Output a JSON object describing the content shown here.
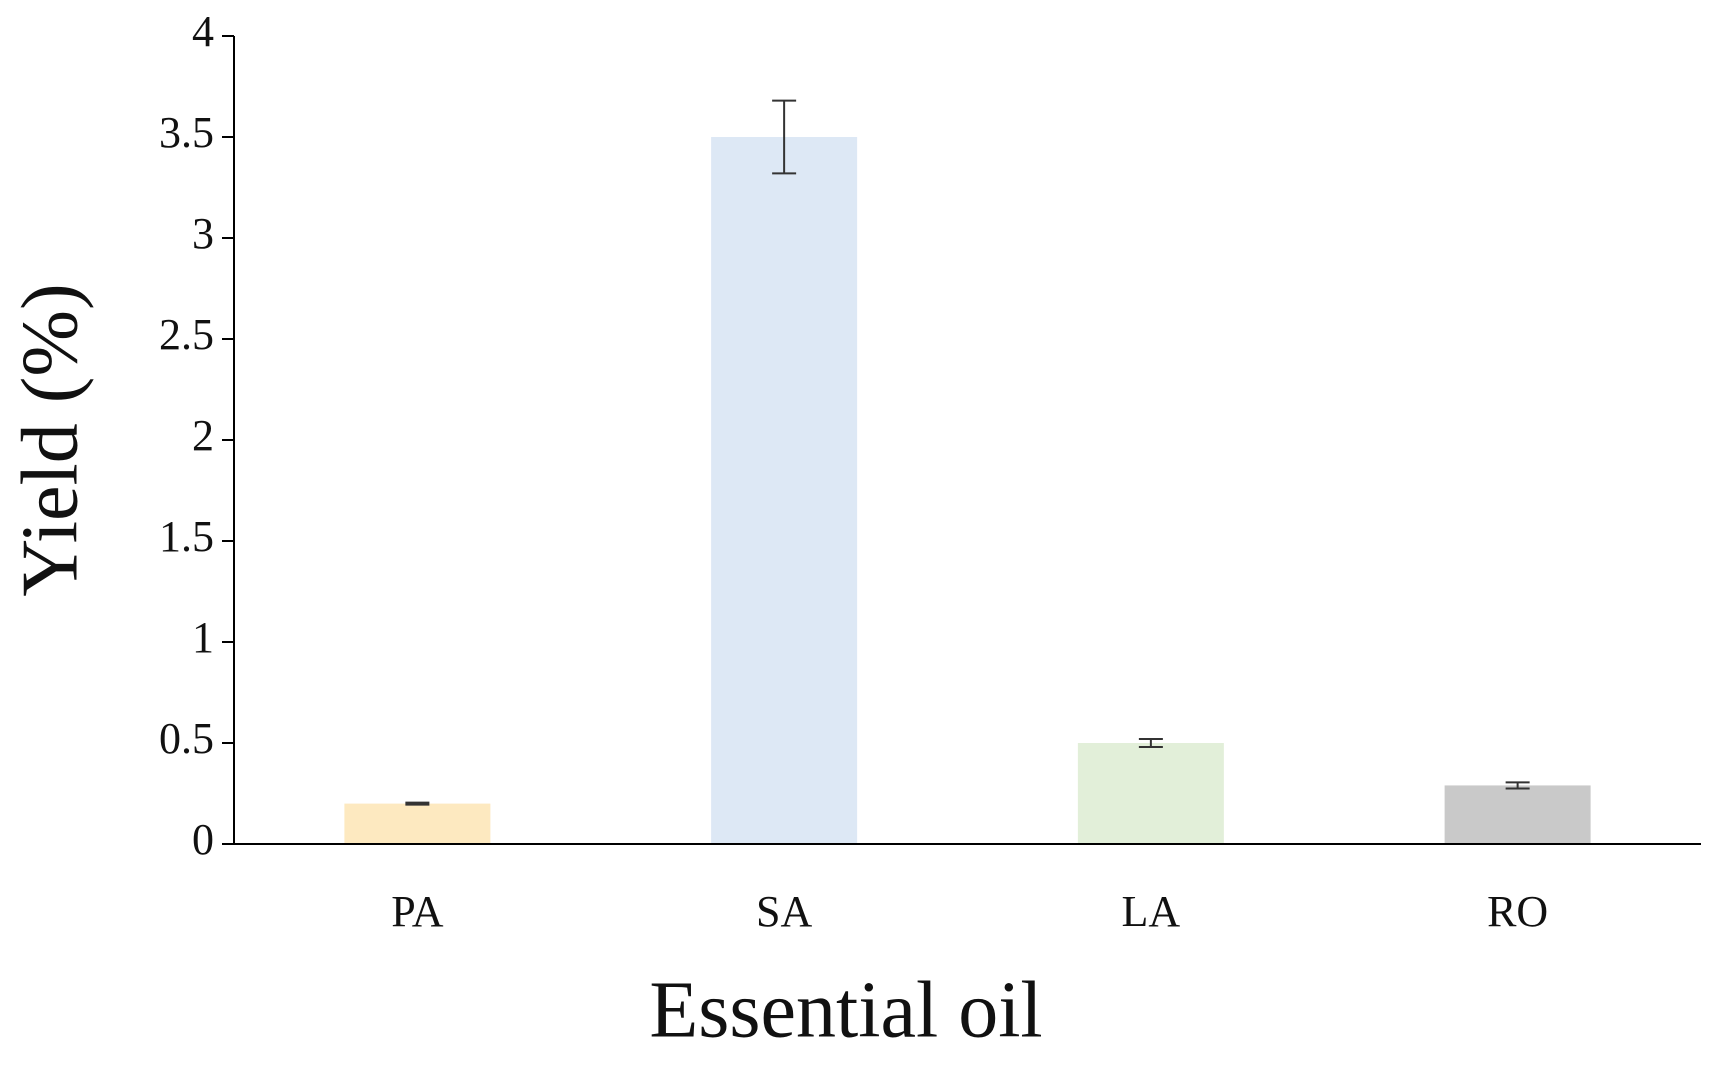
{
  "chart_data": {
    "type": "bar",
    "x_label": "Essential oil",
    "y_label": "Yield (%)",
    "categories": [
      "PA",
      "SA",
      "LA",
      "RO"
    ],
    "values": [
      0.2,
      3.5,
      0.5,
      0.29
    ],
    "errors": [
      0.005,
      0.18,
      0.02,
      0.015
    ],
    "colors": [
      "#fde9c0",
      "#dde8f5",
      "#e2efd9",
      "#c9c9c9"
    ],
    "ylim": [
      0,
      4
    ],
    "yticks": [
      0,
      0.5,
      1,
      1.5,
      2,
      2.5,
      3,
      3.5,
      4
    ],
    "grid": false
  }
}
